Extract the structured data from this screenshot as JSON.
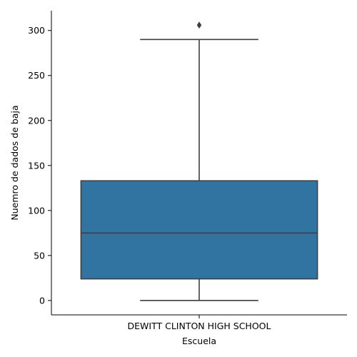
{
  "chart_data": {
    "type": "box",
    "categories": [
      "DEWITT CLINTON HIGH SCHOOL"
    ],
    "boxes": [
      {
        "category": "DEWITT CLINTON HIGH SCHOOL",
        "whisker_low": 0,
        "q1": 24,
        "median": 75,
        "q3": 133,
        "whisker_high": 290,
        "outliers": [
          306
        ]
      }
    ],
    "xlabel": "Escuela",
    "ylabel": "Nuemro de dados de baja",
    "ylim": [
      -16,
      322
    ],
    "yticks": [
      0,
      50,
      100,
      150,
      200,
      250,
      300
    ],
    "grid": false,
    "colors": {
      "box_fill": "#3274a1",
      "line": "#3f3f3f",
      "axis": "#000000"
    }
  }
}
